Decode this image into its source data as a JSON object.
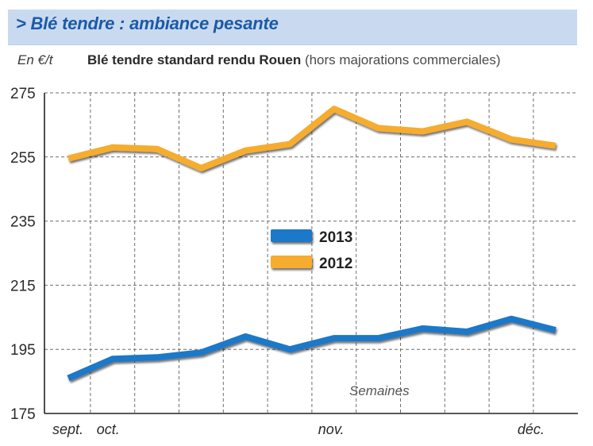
{
  "header": {
    "title": "> Blé tendre : ambiance pesante"
  },
  "chart_data": {
    "type": "line",
    "title": "Blé tendre standard rendu Rouen",
    "subtitle": "(hors majorations commerciales)",
    "ylabel": "En €/t",
    "xlabel": "Semaines",
    "ylim": [
      175,
      275
    ],
    "yticks": [
      175,
      195,
      215,
      235,
      255,
      275
    ],
    "month_labels": [
      "sept.",
      "oct.",
      "nov.",
      "déc."
    ],
    "month_positions": [
      0,
      1,
      6,
      10.5
    ],
    "x_count": 12,
    "grid": true,
    "legend_position": "center",
    "series": [
      {
        "name": "2013",
        "color": "#1f78c8",
        "shadow": "#9a9a9a",
        "values": [
          186,
          192,
          192.5,
          194,
          199,
          195,
          198.5,
          198.5,
          201.5,
          200.5,
          204.5,
          201
        ]
      },
      {
        "name": "2012",
        "color": "#f6ac2e",
        "shadow": "#9a9a9a",
        "values": [
          254.5,
          258,
          257.5,
          251.5,
          257,
          259,
          270,
          264,
          263,
          266,
          260.5,
          258.5
        ]
      }
    ]
  }
}
